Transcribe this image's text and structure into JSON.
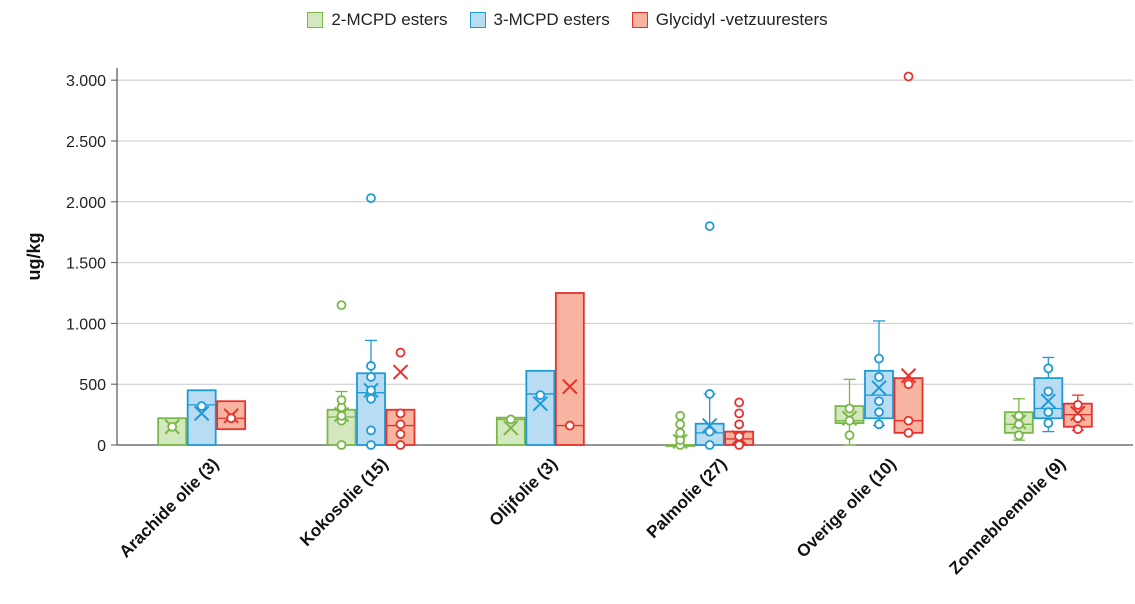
{
  "chart_data": {
    "type": "box",
    "ylabel": "ug/kg",
    "ylim": [
      0,
      3100
    ],
    "yticks": [
      {
        "value": 0,
        "label": "0"
      },
      {
        "value": 500,
        "label": "500"
      },
      {
        "value": 1000,
        "label": "1.000"
      },
      {
        "value": 1500,
        "label": "1.500"
      },
      {
        "value": 2000,
        "label": "2.000"
      },
      {
        "value": 2500,
        "label": "2.500"
      },
      {
        "value": 3000,
        "label": "3.000"
      }
    ],
    "grid": true,
    "legend_position": "top",
    "categories": [
      "Arachide olie (3)",
      "Kokosolie (15)",
      "Olijfolie (3)",
      "Palmolie (27)",
      "Overige olie (10)",
      "Zonnebloemolie (9)"
    ],
    "series": [
      {
        "name": "2-MCPD esters",
        "stroke": "#7ab648",
        "fill": "#d4e8bf",
        "boxes": [
          {
            "q1": 0,
            "median": 220,
            "q3": 220,
            "mean": 150,
            "whisker_low": 0,
            "whisker_high": 220,
            "points": [
              150
            ]
          },
          {
            "q1": 0,
            "median": 230,
            "q3": 290,
            "mean": 250,
            "whisker_low": 0,
            "whisker_high": 440,
            "points": [
              0,
              200,
              240,
              310,
              370,
              1150
            ]
          },
          {
            "q1": 0,
            "median": 210,
            "q3": 225,
            "mean": 140,
            "whisker_low": 0,
            "whisker_high": 225,
            "points": [
              210
            ]
          },
          {
            "q1": 0,
            "median": 0,
            "q3": 0,
            "mean": 30,
            "whisker_low": 0,
            "whisker_high": 0,
            "points": [
              0,
              40,
              100,
              170,
              240
            ]
          },
          {
            "q1": 180,
            "median": 200,
            "q3": 320,
            "mean": 220,
            "whisker_low": 0,
            "whisker_high": 540,
            "points": [
              80,
              200,
              300
            ]
          },
          {
            "q1": 100,
            "median": 170,
            "q3": 270,
            "mean": 190,
            "whisker_low": 40,
            "whisker_high": 380,
            "points": [
              80,
              170,
              240
            ]
          }
        ]
      },
      {
        "name": "3-MCPD esters",
        "stroke": "#1e9ad6",
        "fill": "#b8ddf2",
        "boxes": [
          {
            "q1": 0,
            "median": 330,
            "q3": 450,
            "mean": 260,
            "whisker_low": 0,
            "whisker_high": 450,
            "points": [
              320
            ]
          },
          {
            "q1": 0,
            "median": 430,
            "q3": 590,
            "mean": 450,
            "whisker_low": 0,
            "whisker_high": 860,
            "points": [
              0,
              120,
              380,
              450,
              560,
              650,
              2030
            ]
          },
          {
            "q1": 0,
            "median": 420,
            "q3": 610,
            "mean": 340,
            "whisker_low": 0,
            "whisker_high": 610,
            "points": [
              410
            ]
          },
          {
            "q1": 0,
            "median": 100,
            "q3": 175,
            "mean": 160,
            "whisker_low": 0,
            "whisker_high": 420,
            "points": [
              0,
              110,
              420,
              1800
            ]
          },
          {
            "q1": 220,
            "median": 410,
            "q3": 610,
            "mean": 470,
            "whisker_low": 160,
            "whisker_high": 1020,
            "points": [
              170,
              270,
              360,
              560,
              710
            ]
          },
          {
            "q1": 220,
            "median": 300,
            "q3": 550,
            "mean": 360,
            "whisker_low": 110,
            "whisker_high": 720,
            "points": [
              180,
              270,
              440,
              630
            ]
          }
        ]
      },
      {
        "name": "Glycidyl -vetzuuresters",
        "stroke": "#e5322c",
        "fill": "#f7b4a0",
        "boxes": [
          {
            "q1": 130,
            "median": 220,
            "q3": 360,
            "mean": 240,
            "whisker_low": 130,
            "whisker_high": 360,
            "points": [
              220
            ]
          },
          {
            "q1": 0,
            "median": 160,
            "q3": 290,
            "mean": 600,
            "whisker_low": 0,
            "whisker_high": 290,
            "points": [
              0,
              90,
              170,
              260,
              760
            ]
          },
          {
            "q1": 0,
            "median": 160,
            "q3": 1250,
            "mean": 480,
            "whisker_low": 0,
            "whisker_high": 1250,
            "points": [
              160
            ]
          },
          {
            "q1": 0,
            "median": 50,
            "q3": 110,
            "mean": 60,
            "whisker_low": 0,
            "whisker_high": 110,
            "points": [
              0,
              70,
              170,
              260,
              350
            ]
          },
          {
            "q1": 100,
            "median": 200,
            "q3": 550,
            "mean": 570,
            "whisker_low": 100,
            "whisker_high": 550,
            "points": [
              100,
              200,
              500,
              3030
            ]
          },
          {
            "q1": 150,
            "median": 250,
            "q3": 340,
            "mean": 260,
            "whisker_low": 120,
            "whisker_high": 410,
            "points": [
              130,
              220,
              330
            ]
          }
        ]
      }
    ]
  }
}
